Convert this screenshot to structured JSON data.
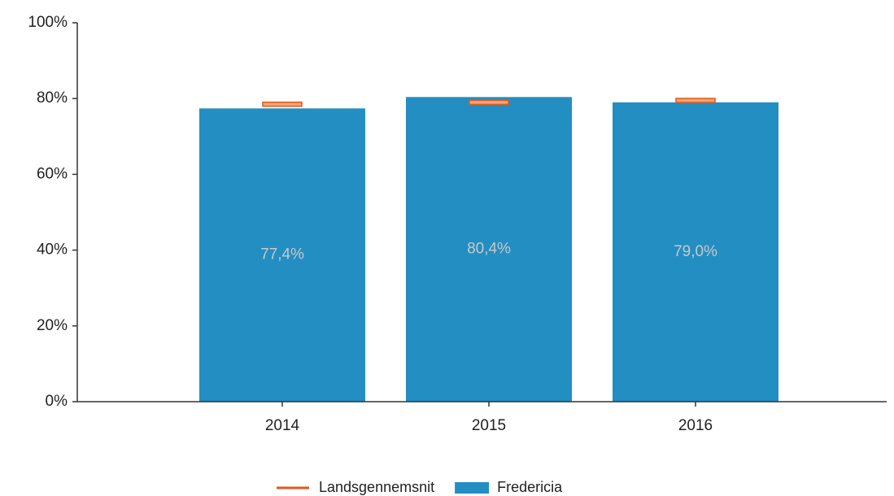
{
  "chart_data": {
    "type": "bar",
    "categories": [
      "2014",
      "2015",
      "2016"
    ],
    "series": [
      {
        "name": "Landsgennemsnit",
        "color": "#e05a1a",
        "mark": "line",
        "values": [
          78.5,
          79.0,
          79.5
        ]
      },
      {
        "name": "Fredericia",
        "color": "#238ec2",
        "values": [
          77.4,
          80.4,
          79.0
        ],
        "value_labels": [
          "77,4%",
          "80,4%",
          "79,0%"
        ]
      }
    ],
    "ylim": [
      0,
      100
    ],
    "yticks": [
      {
        "value": 0,
        "label": "0%"
      },
      {
        "value": 20,
        "label": "20%"
      },
      {
        "value": 40,
        "label": "40%"
      },
      {
        "value": 60,
        "label": "60%"
      },
      {
        "value": 80,
        "label": "80%"
      },
      {
        "value": 100,
        "label": "100%"
      }
    ],
    "legend": "bottom"
  }
}
